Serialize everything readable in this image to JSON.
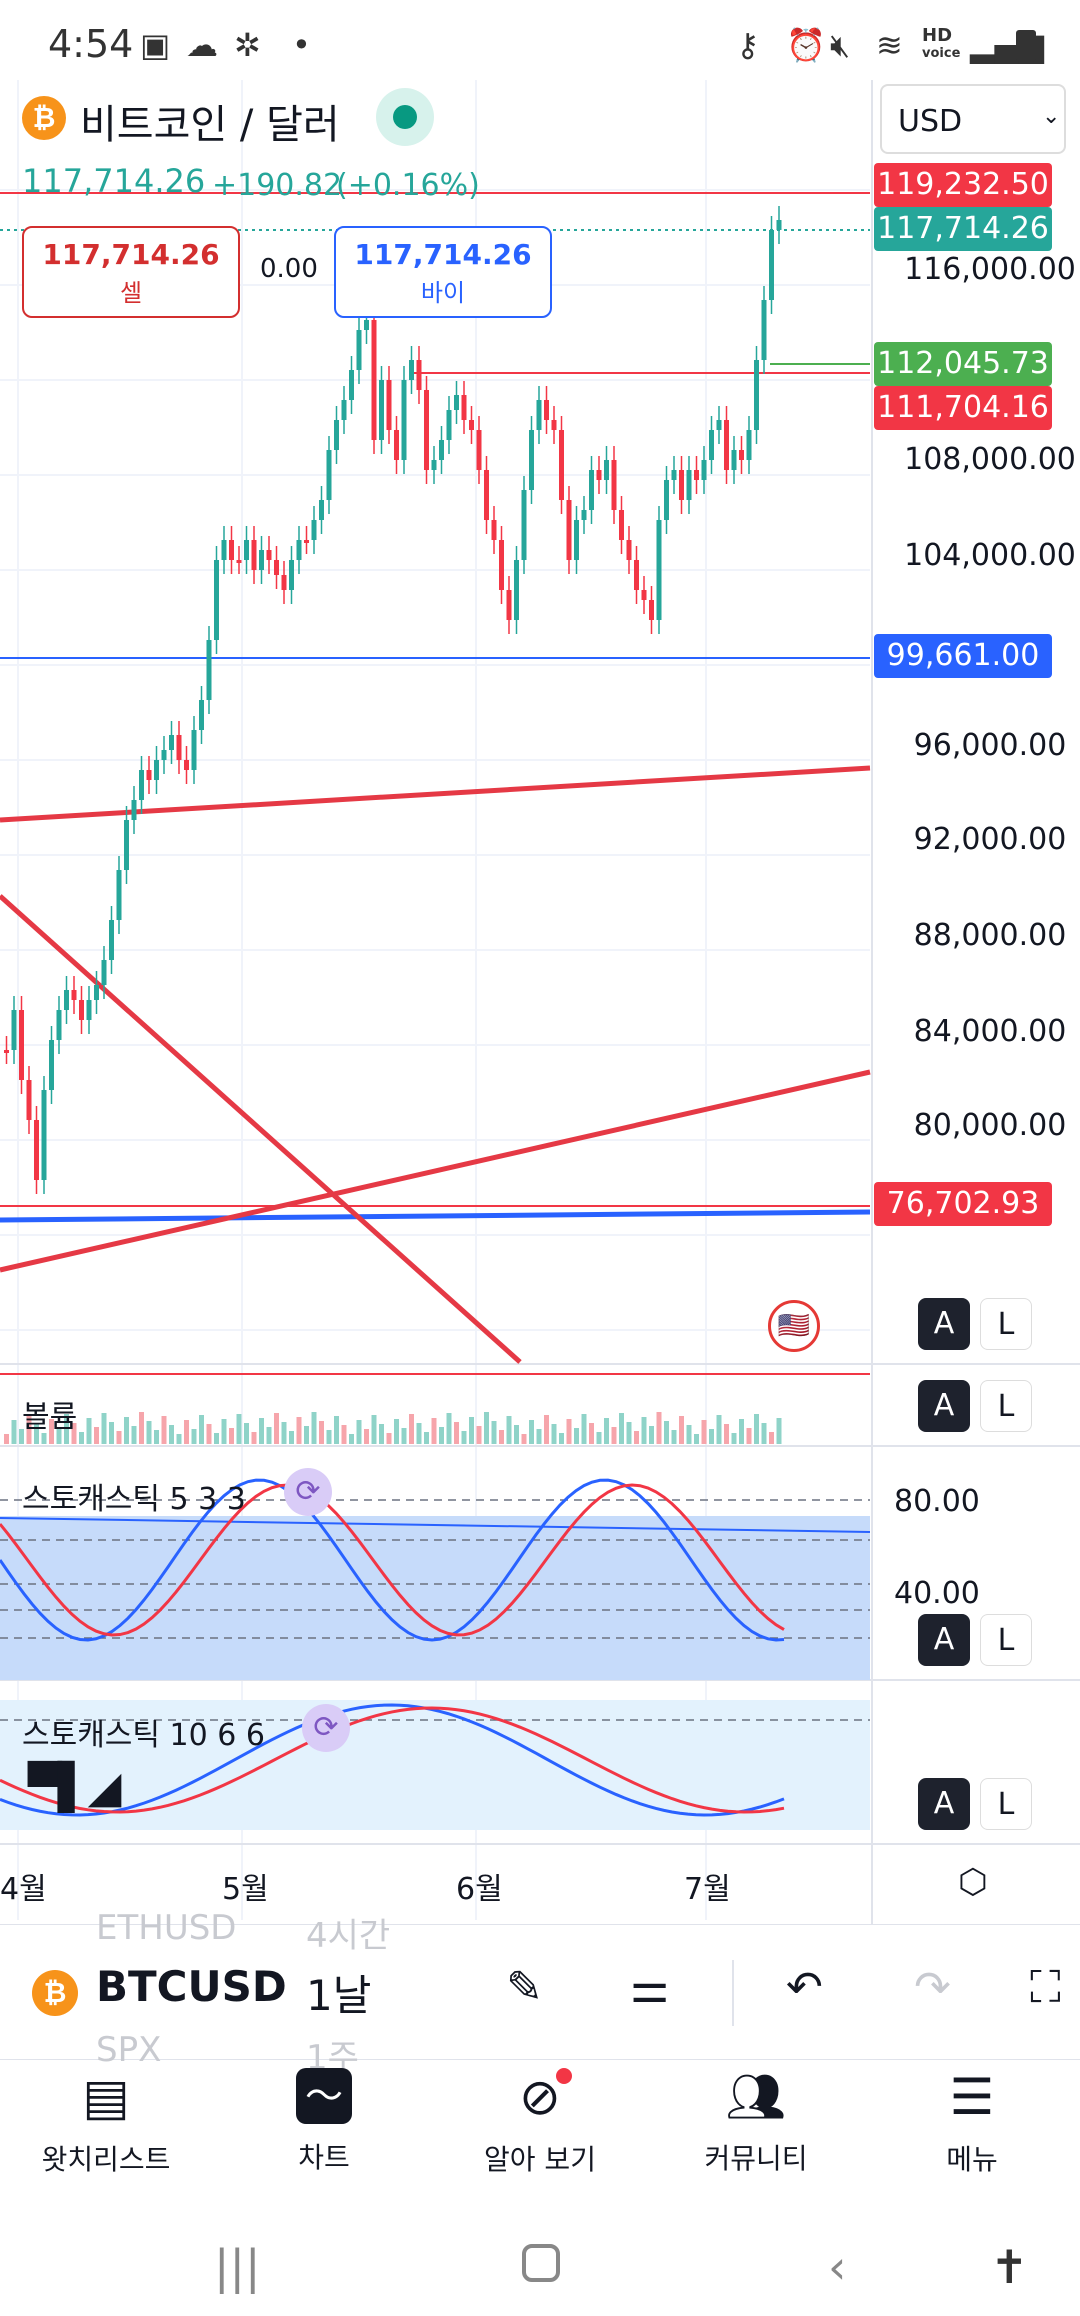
{
  "status_bar": {
    "time": "4:54",
    "icons": [
      "gallery-icon",
      "messenger-icon",
      "network-icon",
      "dot-icon",
      "key-icon",
      "alarm-icon",
      "mute-icon",
      "wifi-icon",
      "hd-voice-icon",
      "signal-icon",
      "battery-icon"
    ],
    "hd_label": "HD",
    "voice_label": "voice"
  },
  "header": {
    "coin_symbol": "₿",
    "title": "비트코인 / 달러",
    "currency": "USD",
    "last_price": "117,714.26",
    "change_abs": "+190.82",
    "change_pct": "(+0.16%)",
    "sell_price": "117,714.26",
    "sell_label": "셀",
    "spread": "0.00",
    "buy_price": "117,714.26",
    "buy_label": "바이"
  },
  "price_axis": {
    "labels": [
      "116,000.00",
      "108,000.00",
      "104,000.00",
      "96,000.00",
      "92,000.00",
      "88,000.00",
      "84,000.00",
      "80,000.00"
    ],
    "tags": [
      {
        "value": "119,232.50",
        "color": "#f23645"
      },
      {
        "value": "117,714.26",
        "color": "#26a69a"
      },
      {
        "value": "112,045.73",
        "color": "#4caf50"
      },
      {
        "value": "111,704.16",
        "color": "#f23645"
      },
      {
        "value": "99,661.00",
        "color": "#2962ff"
      },
      {
        "value": "76,702.93",
        "color": "#f23645"
      }
    ]
  },
  "panes": {
    "volume_title": "볼륨",
    "stoch1_title": "스토캐스틱 5 3 3",
    "stoch1_axis": [
      "80.00",
      "40.00"
    ],
    "stoch2_title": "스토캐스틱 10 6 6",
    "a_label": "A",
    "l_label": "L"
  },
  "time_axis": [
    "4월",
    "5월",
    "6월",
    "7월"
  ],
  "toolbar": {
    "prev_symbol": "ETHUSD",
    "symbol": "BTCUSD",
    "next_symbol": "SPX",
    "prev_interval": "4시간",
    "interval": "1날",
    "next_interval": "1주"
  },
  "bottom_nav": [
    {
      "label": "왓치리스트",
      "icon": "watchlist-icon"
    },
    {
      "label": "차트",
      "icon": "chart-icon"
    },
    {
      "label": "알아 보기",
      "icon": "explore-icon"
    },
    {
      "label": "커뮤니티",
      "icon": "community-icon"
    },
    {
      "label": "메뉴",
      "icon": "menu-icon"
    }
  ]
}
